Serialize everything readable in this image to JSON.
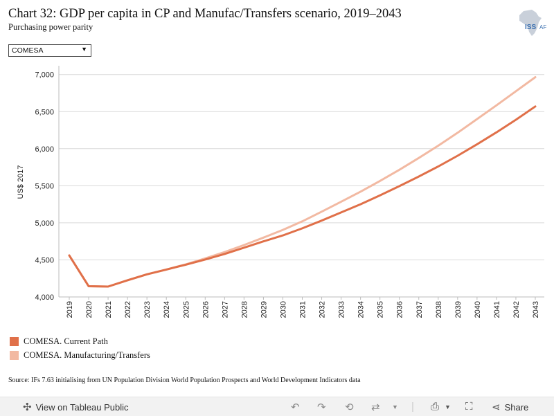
{
  "header": {
    "title": "Chart 32: GDP per capita in CP and Manufac/Transfers scenario, 2019–2043",
    "subtitle": "Purchasing power parity",
    "logo_text": "ISS AF"
  },
  "filter": {
    "selected": "COMESA"
  },
  "chart_data": {
    "type": "line",
    "title": "Chart 32: GDP per capita in CP and Manufac/Transfers scenario, 2019–2043",
    "subtitle": "Purchasing power parity",
    "xlabel": "",
    "ylabel": "US$ 2017",
    "x": [
      2019,
      2020,
      2021,
      2022,
      2023,
      2024,
      2025,
      2026,
      2027,
      2028,
      2029,
      2030,
      2031,
      2032,
      2033,
      2034,
      2035,
      2036,
      2037,
      2038,
      2039,
      2040,
      2041,
      2042,
      2043
    ],
    "x_tick_labels": [
      "2019",
      "2020",
      "2021",
      "2022",
      "2023",
      "2024",
      "2025",
      "2026",
      "2027",
      "2028",
      "2029",
      "2030",
      "2031",
      "2032",
      "2033",
      "2034",
      "2035",
      "2036",
      "2037",
      "2038",
      "2039",
      "2040",
      "2041",
      "2042",
      "2043"
    ],
    "ylim": [
      4000,
      7100
    ],
    "y_ticks": [
      4000,
      4500,
      5000,
      5500,
      6000,
      6500,
      7000
    ],
    "y_tick_labels": [
      "4,000",
      "4,500",
      "5,000",
      "5,500",
      "6,000",
      "6,500",
      "7,000"
    ],
    "grid": true,
    "series": [
      {
        "name": "COMESA. Current Path",
        "color": "#e07049",
        "values": [
          4560,
          4145,
          4140,
          4225,
          4305,
          4370,
          4435,
          4505,
          4580,
          4665,
          4750,
          4830,
          4925,
          5030,
          5140,
          5250,
          5370,
          5495,
          5625,
          5760,
          5905,
          6060,
          6220,
          6390,
          6570
        ]
      },
      {
        "name": "COMESA. Manufacturing/Transfers",
        "color": "#f2b9a2",
        "values": [
          4560,
          4145,
          4140,
          4225,
          4305,
          4370,
          4440,
          4520,
          4605,
          4700,
          4800,
          4905,
          5020,
          5150,
          5285,
          5420,
          5565,
          5715,
          5875,
          6040,
          6215,
          6400,
          6585,
          6775,
          6965
        ]
      }
    ]
  },
  "legend": [
    {
      "label": "COMESA. Current Path",
      "color": "#e07049"
    },
    {
      "label": "COMESA. Manufacturing/Transfers",
      "color": "#f2b9a2"
    }
  ],
  "source": "Source: IFs 7.63 initialising from UN Population Division World Population Prospects and World Development Indicators data",
  "footer": {
    "view_label": "View on Tableau Public",
    "share_label": "Share"
  }
}
